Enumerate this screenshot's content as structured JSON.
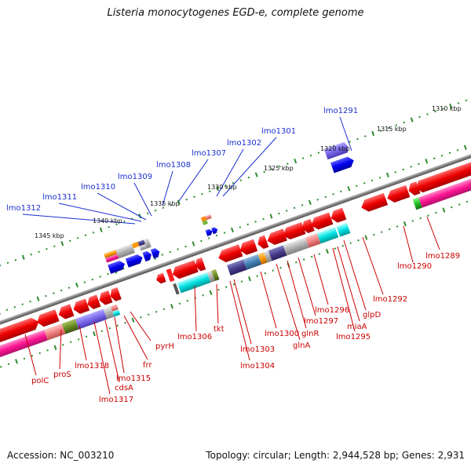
{
  "title": "Listeria monocytogenes EGD-e, complete genome",
  "accession": "Accession: NC_003210",
  "summary": "Topology: circular; Length: 2,944,528 bp; Genes: 2,931",
  "colors": {
    "gene_label_top": "#1a2fd0",
    "gene_label_bottom": "#cc0000",
    "backbone": "#8a8a8a",
    "tick": "#2e8b2e"
  },
  "scale_labels": [
    "1310 kbp",
    "1315 kbp",
    "1320 kbp",
    "1325 kbp",
    "1330 kbp",
    "1335 kbp",
    "1340 kbp",
    "1345 kbp"
  ],
  "top_genes": [
    "lmo1291",
    "lmo1301",
    "lmo1302",
    "lmo1307",
    "lmo1308",
    "lmo1309",
    "lmo1310",
    "lmo1311",
    "lmo1312"
  ],
  "bottom_genes": [
    "lmo1289",
    "lmo1290",
    "lmo1292",
    "glpD",
    "lmo1295",
    "miaA",
    "lmo1296",
    "lmo1297",
    "glnR",
    "glnA",
    "lmo1300",
    "lmo1303",
    "lmo1304",
    "tkt",
    "lmo1306",
    "pyrH",
    "frr",
    "lmo1315",
    "cdsA",
    "lmo1317",
    "lmo1318",
    "proS",
    "polC"
  ]
}
